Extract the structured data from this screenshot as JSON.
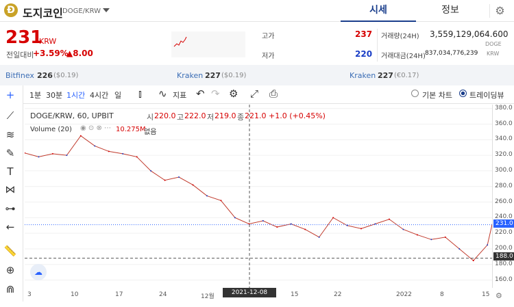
{
  "header": {
    "logo_glyph": "Ð",
    "coin_name": "도지코인",
    "pair": "DOGE/KRW",
    "tabs": [
      "시세",
      "정보"
    ]
  },
  "price": {
    "current": "231",
    "unit": "KRW",
    "change_label": "전일대비",
    "change_pct": "+3.59%",
    "change_abs": "▲8.00"
  },
  "stats": {
    "high_label": "고가",
    "high": "237",
    "low_label": "저가",
    "low": "220",
    "volume_label": "거래량(24H)",
    "volume": "3,559,129,064.600",
    "volume_unit": "DOGE",
    "amount_label": "거래대금(24H)",
    "amount": "837,034,776,239",
    "amount_unit": "KRW"
  },
  "exchanges": [
    {
      "name": "Bitfinex",
      "price": "226",
      "sub": "($0.19)"
    },
    {
      "name": "Kraken",
      "price": "227",
      "sub": "($0.19)"
    },
    {
      "name": "Kraken",
      "price": "227",
      "sub": "(€0.17)"
    }
  ],
  "toolbar": {
    "intervals": [
      "1분",
      "30분",
      "1시간",
      "4시간",
      "일"
    ],
    "indicator_label": "지표",
    "basic_chart": "기본 차트",
    "tradingview": "트레이딩뷰"
  },
  "chart_legend": {
    "symbol": "DOGE/KRW, 60, UPBIT",
    "open_label": "시",
    "open": "220.0",
    "high_label": "고",
    "high": "222.0",
    "low_label": "저",
    "low": "219.0",
    "close_label": "종",
    "close": "221.0",
    "change": "+1.0 (+0.45%)",
    "volume_label": "Volume (20)",
    "volume_value": "10.275M",
    "volume_extra": "없음"
  },
  "chart_axis": {
    "y_ticks": [
      "380.0",
      "360.0",
      "340.0",
      "320.0",
      "300.0",
      "280.0",
      "260.0",
      "240.0",
      "220.0",
      "200.0",
      "180.0",
      "160.0"
    ],
    "current_tag": "231.0",
    "crosshair_tag": "188.0",
    "x_ticks": [
      "3",
      "10",
      "17",
      "24",
      "12월",
      "15",
      "22",
      "2022",
      "8",
      "15"
    ],
    "crosshair_time": "2021-12-08  08:00"
  },
  "chart_data": {
    "type": "line",
    "ylim": [
      150,
      385
    ],
    "x": [
      0,
      3,
      6,
      9,
      12,
      15,
      18,
      21,
      24,
      27,
      30,
      33,
      36,
      39,
      42,
      45,
      48,
      51,
      54,
      57,
      60,
      63,
      66,
      69,
      72,
      75,
      78,
      81,
      84,
      87,
      90,
      93,
      96,
      99,
      100
    ],
    "values": [
      323,
      318,
      322,
      320,
      345,
      332,
      325,
      322,
      318,
      300,
      288,
      292,
      282,
      268,
      262,
      240,
      232,
      236,
      228,
      232,
      225,
      215,
      240,
      230,
      226,
      232,
      238,
      225,
      218,
      212,
      215,
      200,
      185,
      205,
      231
    ]
  },
  "colors": {
    "accent": "#1a3e8c",
    "up": "#d60000",
    "down": "#1a3ec6",
    "current_tag": "#2962ff",
    "crosshair_tag": "#333333"
  }
}
